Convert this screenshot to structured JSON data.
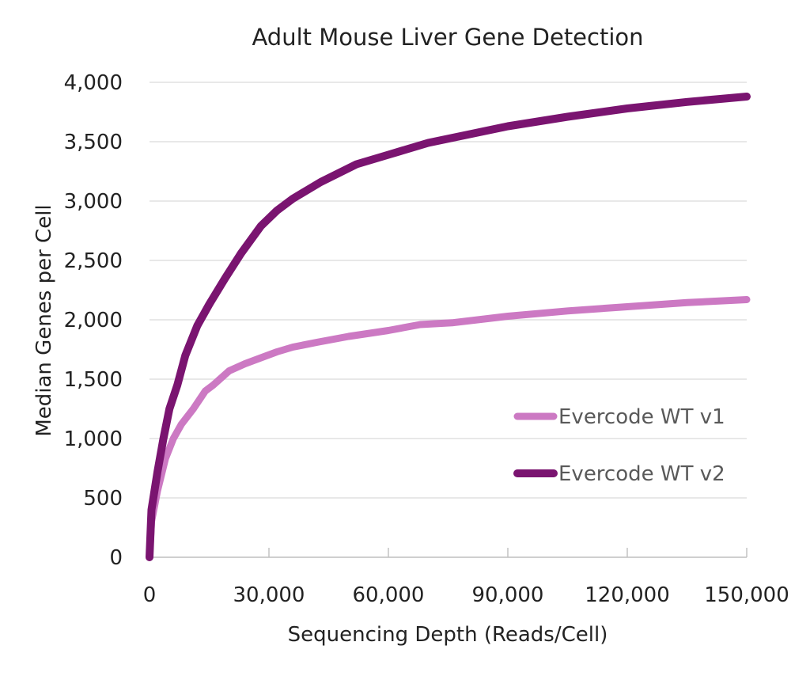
{
  "chart_data": {
    "type": "line",
    "title": "Adult Mouse Liver Gene Detection",
    "xlabel": "Sequencing Depth (Reads/Cell)",
    "ylabel": "Median Genes per Cell",
    "xlim": [
      0,
      150000
    ],
    "ylim": [
      0,
      4000
    ],
    "x_ticks": [
      0,
      30000,
      60000,
      90000,
      120000,
      150000
    ],
    "x_tick_labels": [
      "0",
      "30,000",
      "60,000",
      "90,000",
      "120,000",
      "150,000"
    ],
    "y_ticks": [
      0,
      500,
      1000,
      1500,
      2000,
      2500,
      3000,
      3500,
      4000
    ],
    "y_tick_labels": [
      "0",
      "500",
      "1,000",
      "1,500",
      "2,000",
      "2,500",
      "3,000",
      "3,500",
      "4,000"
    ],
    "grid": "horizontal",
    "legend_position": "bottom-right",
    "series": [
      {
        "name": "Evercode WT v1",
        "color": "#cc79c3",
        "points": [
          [
            0,
            0
          ],
          [
            500,
            300
          ],
          [
            2000,
            560
          ],
          [
            4000,
            830
          ],
          [
            6000,
            1000
          ],
          [
            8000,
            1120
          ],
          [
            11000,
            1250
          ],
          [
            14000,
            1400
          ],
          [
            16000,
            1450
          ],
          [
            20000,
            1570
          ],
          [
            24000,
            1630
          ],
          [
            28000,
            1680
          ],
          [
            32000,
            1730
          ],
          [
            36000,
            1770
          ],
          [
            42000,
            1810
          ],
          [
            50000,
            1860
          ],
          [
            60000,
            1910
          ],
          [
            68000,
            1960
          ],
          [
            76000,
            1975
          ],
          [
            90000,
            2030
          ],
          [
            105000,
            2075
          ],
          [
            120000,
            2110
          ],
          [
            135000,
            2145
          ],
          [
            150000,
            2170
          ]
        ]
      },
      {
        "name": "Evercode WT v2",
        "color": "#7a1470",
        "points": [
          [
            0,
            0
          ],
          [
            500,
            400
          ],
          [
            2000,
            720
          ],
          [
            3500,
            1000
          ],
          [
            5000,
            1250
          ],
          [
            7000,
            1450
          ],
          [
            9000,
            1700
          ],
          [
            12000,
            1950
          ],
          [
            15000,
            2130
          ],
          [
            19000,
            2350
          ],
          [
            23000,
            2560
          ],
          [
            28000,
            2790
          ],
          [
            32000,
            2920
          ],
          [
            36000,
            3020
          ],
          [
            43000,
            3160
          ],
          [
            52000,
            3310
          ],
          [
            60000,
            3390
          ],
          [
            70000,
            3490
          ],
          [
            80000,
            3560
          ],
          [
            90000,
            3630
          ],
          [
            105000,
            3710
          ],
          [
            120000,
            3780
          ],
          [
            135000,
            3835
          ],
          [
            150000,
            3880
          ]
        ]
      }
    ]
  }
}
